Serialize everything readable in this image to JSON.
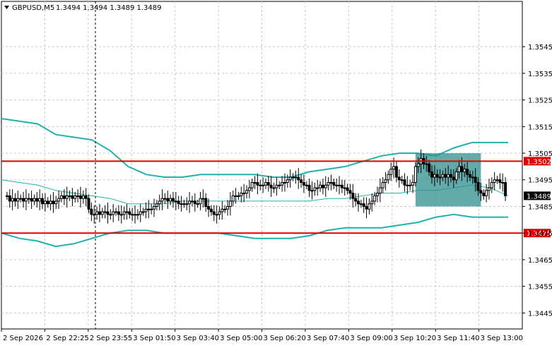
{
  "header": {
    "symbol_label": "GBPUSD,M5",
    "ohlc_label": "1.3494 1.3494 1.3489 1.3489"
  },
  "colors": {
    "background": "#ffffff",
    "grid": "#c8c8c8",
    "candle": "#000000",
    "bollinger": "#20b2aa",
    "level_line": "#e00000",
    "level_label_bg": "#e00000",
    "price_label_bg": "#000000",
    "zone_fill": "#2f8f8f"
  },
  "chart_data": {
    "type": "candlestick",
    "title": "GBPUSD,M5",
    "y_axis": {
      "range": [
        1.3439,
        1.3562
      ],
      "ticks": [
        "1.3545",
        "1.3535",
        "1.3525",
        "1.3515",
        "1.3505",
        "1.3495",
        "1.3485",
        "1.3475",
        "1.3465",
        "1.3455",
        "1.3445"
      ]
    },
    "x_axis": {
      "tick_labels": [
        "2 Sep 2026",
        "2 Sep 22:25",
        "2 Sep 23:55",
        "3 Sep 01:50",
        "3 Sep 03:40",
        "3 Sep 05:00",
        "3 Sep 06:20",
        "3 Sep 07:40",
        "3 Sep 09:00",
        "3 Sep 10:20",
        "3 Sep 11:40",
        "3 Sep 13:00"
      ]
    },
    "grid": true,
    "candles_close": [
      1.3489,
      1.3487,
      1.3488,
      1.3487,
      1.3488,
      1.3488,
      1.3487,
      1.3488,
      1.3488,
      1.3487,
      1.3488,
      1.3487,
      1.3488,
      1.3486,
      1.3487,
      1.3486,
      1.3487,
      1.3486,
      1.3487,
      1.3488,
      1.3489,
      1.3488,
      1.3489,
      1.3489,
      1.3488,
      1.3489,
      1.3489,
      1.3488,
      1.3489,
      1.3488,
      1.3484,
      1.3482,
      1.3482,
      1.3483,
      1.3482,
      1.3483,
      1.3483,
      1.3482,
      1.3482,
      1.3483,
      1.3483,
      1.3482,
      1.3482,
      1.3483,
      1.3483,
      1.3482,
      1.3482,
      1.3482,
      1.3482,
      1.3483,
      1.3483,
      1.3484,
      1.3484,
      1.3484,
      1.3485,
      1.3486,
      1.3487,
      1.3488,
      1.3488,
      1.3487,
      1.3488,
      1.3487,
      1.3487,
      1.3486,
      1.3486,
      1.3486,
      1.3486,
      1.3487,
      1.3487,
      1.3486,
      1.3486,
      1.3488,
      1.3488,
      1.3485,
      1.3484,
      1.3483,
      1.3482,
      1.3482,
      1.3483,
      1.3484,
      1.3484,
      1.3485,
      1.3487,
      1.3489,
      1.3489,
      1.3489,
      1.349,
      1.349,
      1.3491,
      1.3492,
      1.3494,
      1.3494,
      1.3493,
      1.3493,
      1.3493,
      1.3494,
      1.3493,
      1.3492,
      1.3492,
      1.3493,
      1.3493,
      1.3494,
      1.3494,
      1.3495,
      1.3496,
      1.3496,
      1.3496,
      1.3495,
      1.3494,
      1.3493,
      1.3493,
      1.3491,
      1.3491,
      1.3492,
      1.3492,
      1.3493,
      1.3492,
      1.3493,
      1.3494,
      1.3494,
      1.3493,
      1.3493,
      1.3493,
      1.3492,
      1.3492,
      1.3491,
      1.349,
      1.3488,
      1.3487,
      1.3486,
      1.3486,
      1.3485,
      1.3484,
      1.3486,
      1.3487,
      1.3489,
      1.349,
      1.3492,
      1.3494,
      1.3495,
      1.3497,
      1.3499,
      1.35,
      1.3496,
      1.3495,
      1.3495,
      1.3493,
      1.3493,
      1.3493,
      1.3494,
      1.35,
      1.3501,
      1.3503,
      1.3501,
      1.3501,
      1.3498,
      1.3496,
      1.3497,
      1.3496,
      1.3496,
      1.3497,
      1.3496,
      1.3497,
      1.3496,
      1.3495,
      1.3498,
      1.35,
      1.3498,
      1.3499,
      1.3497,
      1.3496,
      1.3496,
      1.3494,
      1.3491,
      1.349,
      1.3489,
      1.3491,
      1.3492,
      1.3494,
      1.3495,
      1.3495,
      1.3494,
      1.3494,
      1.3489
    ],
    "levels": [
      {
        "value": 1.3502,
        "label": "1.3502"
      },
      {
        "value": 1.3475,
        "label": "1.3475"
      }
    ],
    "current_price": {
      "value": 1.3489,
      "label": "1.3489"
    },
    "highlight_zone": {
      "start_index": 150,
      "end_index": 174,
      "y_range": [
        1.3485,
        1.3505
      ]
    },
    "bollinger_upper": [
      1.3518,
      1.3517,
      1.3516,
      1.3512,
      1.3511,
      1.351,
      1.3506,
      1.35,
      1.3497,
      1.3496,
      1.3496,
      1.3497,
      1.3497,
      1.3497,
      1.3497,
      1.3496,
      1.3496,
      1.3498,
      1.3499,
      1.35,
      1.3502,
      1.3504,
      1.3505,
      1.3505,
      1.3504,
      1.3507,
      1.3509,
      1.3509,
      1.3509
    ],
    "bollinger_middle": [
      1.3495,
      1.3494,
      1.3493,
      1.3491,
      1.349,
      1.3489,
      1.3488,
      1.3486,
      1.3486,
      1.3486,
      1.3487,
      1.3487,
      1.3487,
      1.3487,
      1.3487,
      1.3487,
      1.3487,
      1.3487,
      1.3488,
      1.3488,
      1.3489,
      1.349,
      1.349,
      1.3491,
      1.3491,
      1.3492,
      1.3493,
      1.3492,
      1.3489
    ],
    "bollinger_lower": [
      1.3475,
      1.3473,
      1.3472,
      1.347,
      1.3471,
      1.3473,
      1.3475,
      1.3476,
      1.3476,
      1.3475,
      1.3475,
      1.3475,
      1.3475,
      1.3474,
      1.3473,
      1.3473,
      1.3473,
      1.3474,
      1.3476,
      1.3477,
      1.3477,
      1.3477,
      1.3478,
      1.3479,
      1.3481,
      1.3482,
      1.3481,
      1.3481,
      1.3481
    ]
  }
}
